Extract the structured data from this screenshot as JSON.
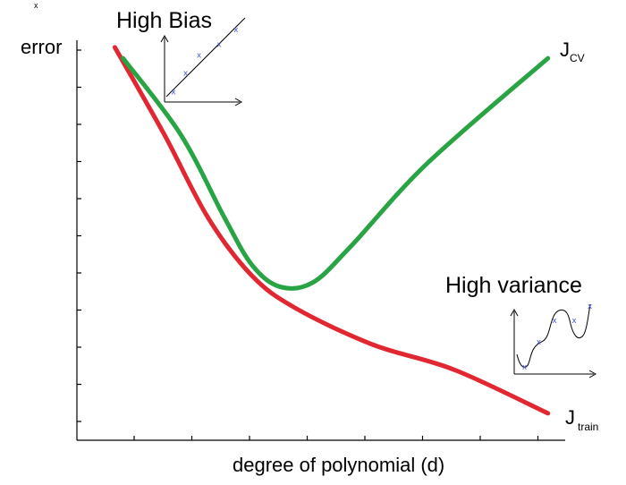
{
  "stray_marker": "x",
  "axes": {
    "ylabel": "error",
    "xlabel": "degree of polynomial (d)"
  },
  "high_bias": {
    "title": "High Bias",
    "point_glyph": "x",
    "points": [
      [
        0.12,
        0.1
      ],
      [
        0.3,
        0.42
      ],
      [
        0.5,
        0.72
      ],
      [
        0.8,
        0.9
      ],
      [
        1.05,
        1.15
      ]
    ]
  },
  "high_variance": {
    "title": "High variance",
    "point_glyph": "x",
    "points": [
      [
        0.12,
        0.1
      ],
      [
        0.3,
        0.45
      ],
      [
        0.5,
        0.75
      ],
      [
        0.75,
        0.75
      ],
      [
        0.95,
        0.95
      ]
    ]
  },
  "curves": [
    {
      "name": "J",
      "subscript": "CV",
      "color": "#29a444",
      "points": [
        [
          0.45,
          0.99
        ],
        [
          1.5,
          0.78
        ],
        [
          2.3,
          0.55
        ],
        [
          2.8,
          0.42
        ],
        [
          3.3,
          0.36
        ],
        [
          3.9,
          0.37
        ],
        [
          4.6,
          0.47
        ],
        [
          6.0,
          0.7
        ],
        [
          8.2,
          0.99
        ]
      ]
    },
    {
      "name": "J",
      "subscript": "train",
      "color": "#e12832",
      "points": [
        [
          0.3,
          1.02
        ],
        [
          1.2,
          0.78
        ],
        [
          2.0,
          0.55
        ],
        [
          2.8,
          0.39
        ],
        [
          3.6,
          0.3
        ],
        [
          5.0,
          0.2
        ],
        [
          6.5,
          0.13
        ],
        [
          8.2,
          0.01
        ]
      ]
    }
  ]
}
